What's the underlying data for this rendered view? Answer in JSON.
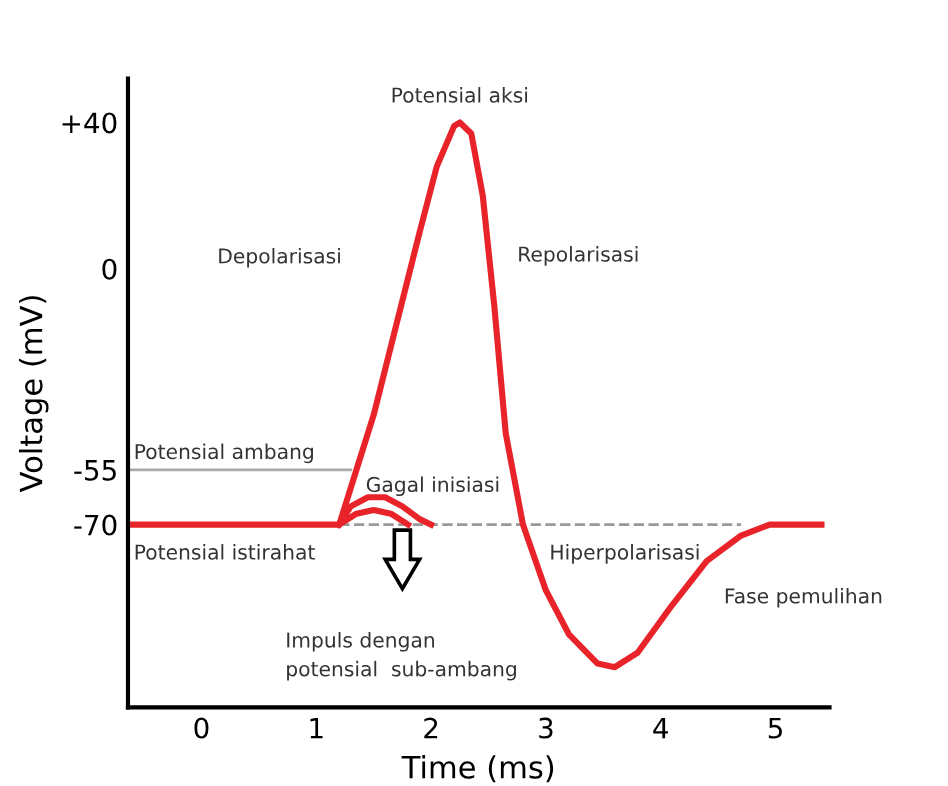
{
  "chart_data": {
    "type": "line",
    "xlabel": "Time (ms)",
    "ylabel": "Voltage (mV)",
    "xlim": [
      -0.64,
      5.47
    ],
    "ylim": [
      -120,
      52
    ],
    "xticks": [
      0,
      1,
      2,
      3,
      4,
      5
    ],
    "yticks": [
      {
        "value": 40,
        "label": "+40"
      },
      0,
      -55,
      -70
    ],
    "grid": false,
    "legend": false,
    "marker": "none",
    "series": [
      {
        "color": "#aaaaaa",
        "line_style": "solid",
        "x": [
          -0.64,
          1.3
        ],
        "values": [
          -55,
          -55
        ]
      },
      {
        "color": "#999999",
        "line_style": "dashed",
        "x": [
          1.2,
          4.7
        ],
        "values": [
          -70,
          -70
        ]
      },
      {
        "color": "#e8242a",
        "line_style": "solid",
        "x": [
          1.2,
          1.3,
          1.45,
          1.6,
          1.75,
          1.9,
          2.0
        ],
        "values": [
          -70,
          -65,
          -62.5,
          -62.5,
          -65,
          -68.5,
          -70
        ]
      },
      {
        "color": "#e8242a",
        "line_style": "solid",
        "x": [
          1.2,
          1.35,
          1.5,
          1.65,
          1.8
        ],
        "values": [
          -70,
          -67,
          -66,
          -67,
          -70
        ]
      },
      {
        "color": "#e8242a",
        "line_style": "solid",
        "x": [
          -0.64,
          1.2,
          1.35,
          1.5,
          1.7,
          1.9,
          2.05,
          2.2,
          2.25,
          2.35,
          2.45,
          2.55,
          2.65,
          2.8,
          3.0,
          3.2,
          3.45,
          3.6,
          3.8,
          4.1,
          4.4,
          4.7,
          4.95,
          5.4
        ],
        "values": [
          -70,
          -70,
          -55,
          -40,
          -15,
          10,
          28,
          39,
          40,
          37,
          20,
          -10,
          -45,
          -70,
          -88,
          -100,
          -108,
          -109,
          -105,
          -92,
          -80,
          -73,
          -70,
          -70
        ]
      }
    ],
    "annotations": [
      "Potensial aksi",
      "Depolarisasi",
      "Repolarisasi",
      "Potensial ambang",
      "Gagal inisiasi",
      "Potensial istirahat",
      "Hiperpolarisasi",
      "Fase pemulihan",
      "Impuls dengan\npotensial  sub-ambang"
    ]
  }
}
